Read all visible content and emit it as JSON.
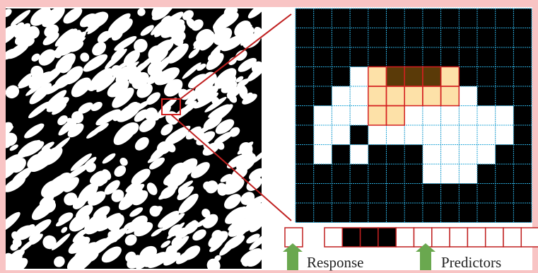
{
  "labels": {
    "response": "Response",
    "predictors": "Predictors"
  }
}
